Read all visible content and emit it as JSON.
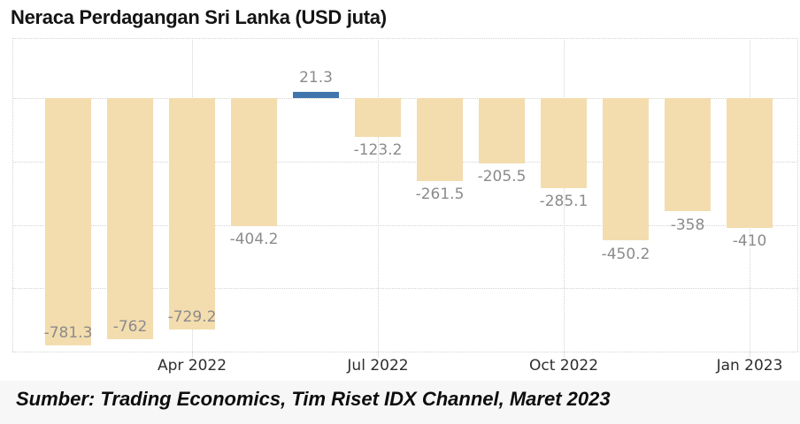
{
  "page": {
    "background": "#ffffff"
  },
  "header": {
    "title": "Neraca Perdagangan Sri Lanka (USD juta)"
  },
  "footer": {
    "source_text": "Sumber: Trading Economics, Tim Riset IDX Channel, Maret 2023"
  },
  "chart_data": {
    "type": "bar",
    "title": "Neraca Perdagangan Sri Lanka (USD juta)",
    "unit": "USD juta",
    "values": [
      -781.3,
      -762,
      -729.2,
      -404.2,
      21.3,
      -123.2,
      -261.5,
      -205.5,
      -285.1,
      -450.2,
      -358,
      -410
    ],
    "value_labels": [
      "-781.3",
      "-762",
      "-729.2",
      "-404.2",
      "21.3",
      "-123.2",
      "-261.5",
      "-205.5",
      "-285.1",
      "-450.2",
      "-358",
      "-410"
    ],
    "x_ticks": [
      {
        "bar_index": 2,
        "label": "Apr 2022"
      },
      {
        "bar_index": 5,
        "label": "Jul 2022"
      },
      {
        "bar_index": 8,
        "label": "Oct 2022"
      },
      {
        "bar_index": 11,
        "label": "Jan 2023"
      }
    ],
    "ylim": [
      -800,
      190
    ],
    "y_gridlines": [
      0,
      -200,
      -400,
      -600,
      -800
    ],
    "grid_style": "dotted",
    "legend": "none",
    "colors": {
      "bar_negative": "#f3dcae",
      "bar_positive": "#4076ab",
      "value_label": "#8b8b8b",
      "axis_label": "#2e2e2e",
      "gridline": "#d3d3d3",
      "title": "#141414",
      "footer_text": "#0d0d0d",
      "footer_bg": "#f7f7f7",
      "background": "#ffffff"
    }
  }
}
